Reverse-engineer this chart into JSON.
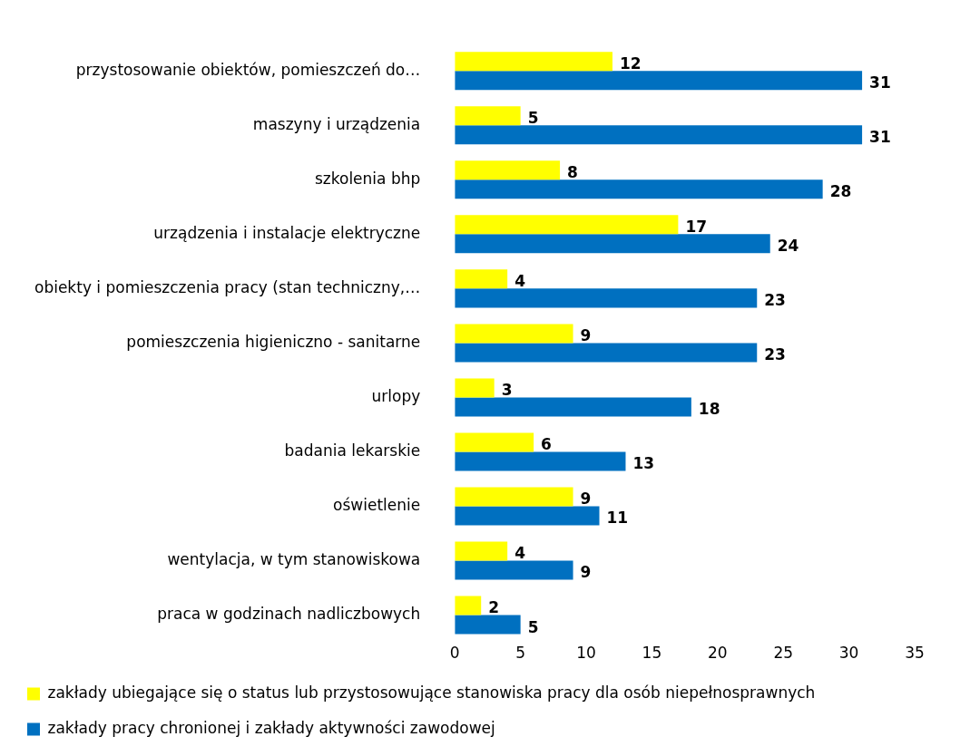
{
  "chart_data": {
    "type": "bar",
    "orientation": "horizontal",
    "categories": [
      "przystosowanie obiektów, pomieszczeń do…",
      "maszyny i urządzenia",
      "szkolenia bhp",
      "urządzenia i instalacje elektryczne",
      "obiekty i pomieszczenia pracy (stan techniczny,…",
      "pomieszczenia higieniczno - sanitarne",
      "urlopy",
      "badania lekarskie",
      "oświetlenie",
      "wentylacja, w tym stanowiskowa",
      "praca w godzinach nadliczbowych"
    ],
    "series": [
      {
        "name": "zakłady ubiegające się o status lub przystosowujące stanowiska pracy dla osób niepełnosprawnych",
        "color": "#ffff00",
        "values": [
          12,
          5,
          8,
          17,
          4,
          9,
          3,
          6,
          9,
          4,
          2
        ]
      },
      {
        "name": "zakłady pracy chronionej i zakłady aktywności zawodowej",
        "color": "#0070c0",
        "values": [
          31,
          31,
          28,
          24,
          23,
          23,
          18,
          13,
          11,
          9,
          5
        ]
      }
    ],
    "xlim": [
      0,
      35
    ],
    "xticks": [
      0,
      5,
      10,
      15,
      20,
      25,
      30,
      35
    ],
    "grid": false,
    "legend": "bottom",
    "data_labels": true
  }
}
